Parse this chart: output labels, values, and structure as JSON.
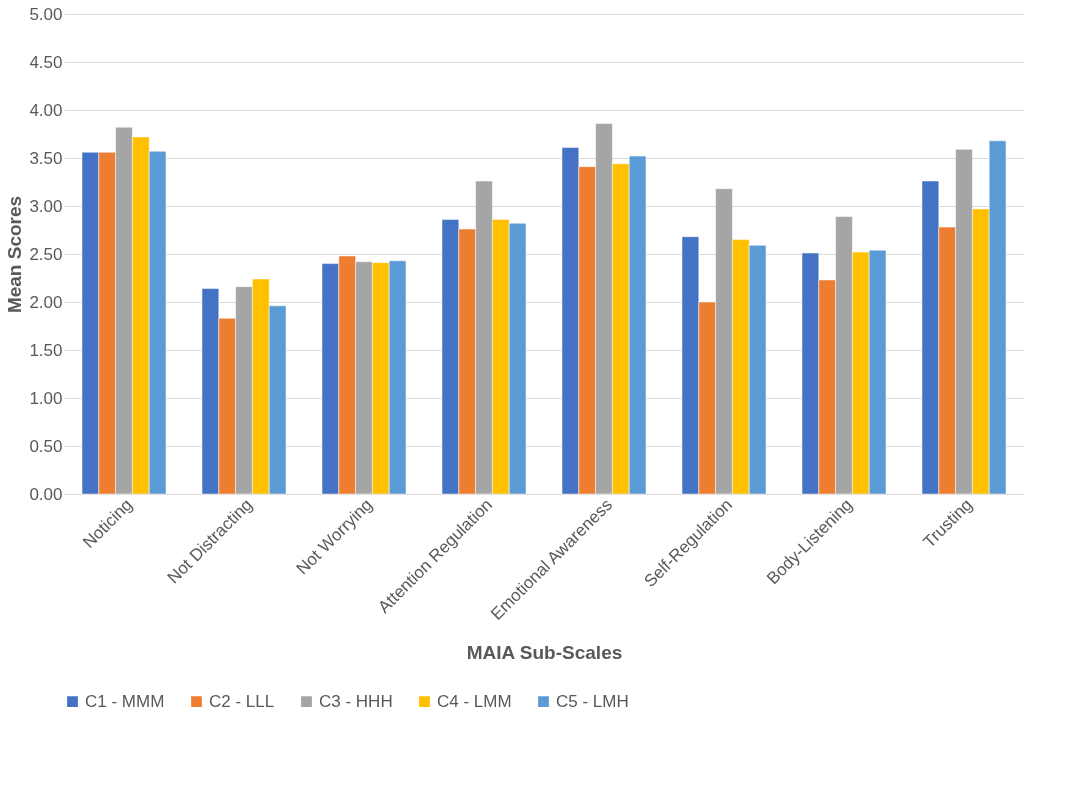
{
  "chart_data": {
    "type": "bar",
    "xlabel": "MAIA Sub-Scales",
    "ylabel": "Mean Scores",
    "categories": [
      "Noticing",
      "Not Distracting",
      "Not Worrying",
      "Attention Regulation",
      "Emotional Awareness",
      "Self-Regulation",
      "Body-Listening",
      "Trusting"
    ],
    "series": [
      {
        "name": "C1 - MMM",
        "color": "#4472c4",
        "values": [
          3.56,
          2.14,
          2.4,
          2.86,
          3.61,
          2.68,
          2.51,
          3.26
        ]
      },
      {
        "name": "C2 - LLL",
        "color": "#ed7d31",
        "values": [
          3.56,
          1.83,
          2.48,
          2.76,
          3.41,
          2.0,
          2.23,
          2.78
        ]
      },
      {
        "name": "C3 - HHH",
        "color": "#a5a5a5",
        "values": [
          3.82,
          2.16,
          2.42,
          3.26,
          3.86,
          3.18,
          2.89,
          3.59
        ]
      },
      {
        "name": "C4 - LMM",
        "color": "#ffc000",
        "values": [
          3.72,
          2.24,
          2.41,
          2.86,
          3.44,
          2.65,
          2.52,
          2.97
        ]
      },
      {
        "name": "C5 - LMH",
        "color": "#5b9bd5",
        "values": [
          3.57,
          1.96,
          2.43,
          2.82,
          3.52,
          2.59,
          2.54,
          3.68
        ]
      }
    ],
    "ylim": [
      0,
      5
    ],
    "yticks": [
      {
        "value": 0,
        "label": "0.00"
      },
      {
        "value": 0.5,
        "label": "0.50"
      },
      {
        "value": 1,
        "label": "1.00"
      },
      {
        "value": 1.5,
        "label": "1.50"
      },
      {
        "value": 2,
        "label": "2.00"
      },
      {
        "value": 2.5,
        "label": "2.50"
      },
      {
        "value": 3,
        "label": "3.00"
      },
      {
        "value": 3.5,
        "label": "3.50"
      },
      {
        "value": 4,
        "label": "4.00"
      },
      {
        "value": 4.5,
        "label": "4.50"
      },
      {
        "value": 5,
        "label": "5.00"
      }
    ],
    "grid": "y",
    "legend": "bottom"
  }
}
